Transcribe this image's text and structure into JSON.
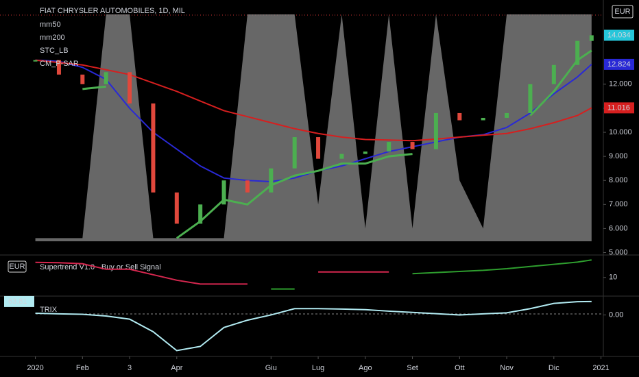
{
  "chart_data": [
    {
      "type": "line",
      "title": "FIAT CHRYSLER AUTOMOBILES, 1D, MIL",
      "currency": "EUR",
      "x": [
        0,
        0.5,
        1,
        1.5,
        2,
        2.5,
        3,
        3.5,
        4,
        4.5,
        5,
        5.5,
        6,
        6.5,
        7,
        7.5,
        8,
        8.5,
        9,
        9.5,
        10,
        10.5,
        11,
        11.5,
        11.8
      ],
      "xlim": [
        -0.75,
        12.05
      ],
      "xticks": [
        {
          "value": 0,
          "label": "2020"
        },
        {
          "value": 1,
          "label": "Feb"
        },
        {
          "value": 2,
          "label": "3"
        },
        {
          "value": 3,
          "label": "Apr"
        },
        {
          "value": 5,
          "label": "Giu"
        },
        {
          "value": 6,
          "label": "Lug"
        },
        {
          "value": 7,
          "label": "Ago"
        },
        {
          "value": 8,
          "label": "Set"
        },
        {
          "value": 9,
          "label": "Ott"
        },
        {
          "value": 10,
          "label": "Nov"
        },
        {
          "value": 11,
          "label": "Dic"
        },
        {
          "value": 12,
          "label": "2021"
        }
      ],
      "ylim": [
        4.9,
        15.5
      ],
      "yticks": [
        {
          "value": 12,
          "label": "12.000"
        },
        {
          "value": 11,
          "label": "11.000"
        },
        {
          "value": 10,
          "label": "10.000"
        },
        {
          "value": 9,
          "label": "9.000"
        },
        {
          "value": 8,
          "label": "8.000"
        },
        {
          "value": 7,
          "label": "7.000"
        },
        {
          "value": 6,
          "label": "6.000"
        },
        {
          "value": 5,
          "label": "5.000"
        }
      ],
      "series": [
        {
          "name": "STC_LB",
          "style": "area",
          "color": "#8a8a8a",
          "values": [
            5.6,
            5.6,
            5.6,
            14.9,
            14.9,
            5.6,
            5.6,
            5.6,
            5.6,
            14.9,
            14.9,
            14.9,
            7,
            14.9,
            6,
            14.9,
            6,
            14.9,
            8,
            6,
            14.9,
            14.9,
            14.9,
            14.9,
            14.9
          ]
        },
        {
          "name": "mm50",
          "style": "line",
          "color": "#2929d6",
          "values": [
            13.0,
            12.95,
            12.7,
            12.2,
            11.0,
            10.0,
            9.3,
            8.6,
            8.1,
            8.0,
            7.95,
            8.1,
            8.4,
            8.6,
            8.9,
            9.2,
            9.4,
            9.6,
            9.8,
            9.9,
            10.2,
            10.8,
            11.6,
            12.3,
            12.824
          ]
        },
        {
          "name": "mm200",
          "style": "line",
          "color": "#d61f1f",
          "values": [
            13.0,
            12.9,
            12.8,
            12.6,
            12.4,
            12.05,
            11.7,
            11.3,
            10.9,
            10.65,
            10.4,
            10.15,
            9.95,
            9.8,
            9.7,
            9.68,
            9.65,
            9.72,
            9.8,
            9.88,
            9.95,
            10.15,
            10.4,
            10.7,
            11.016
          ]
        },
        {
          "name": "CM_P-SAR",
          "style": "line",
          "color": "#4caf50",
          "width": 3,
          "values": [
            null,
            null,
            11.8,
            11.9,
            null,
            null,
            5.6,
            6.3,
            7.2,
            7.0,
            7.8,
            8.2,
            8.4,
            8.7,
            8.7,
            9.0,
            9.1,
            null,
            null,
            9.7,
            null,
            10.7,
            11.7,
            13.0,
            13.4
          ]
        },
        {
          "style": "candle",
          "up_color": "#4caf50",
          "down_color": "#e0483c",
          "values": [
            13.0,
            12.4,
            12.0,
            12.5,
            11.2,
            7.5,
            6.2,
            7.0,
            8.0,
            7.5,
            8.5,
            9.8,
            8.9,
            9.1,
            9.2,
            9.6,
            9.3,
            10.8,
            10.5,
            10.6,
            10.8,
            12.0,
            12.8,
            13.8,
            14.034
          ]
        }
      ]
    },
    {
      "type": "line",
      "title": "Supertrend V1.0 - Buy or Sell Signal",
      "currency": "EUR",
      "ylim": [
        6.6,
        14.1
      ],
      "yticks": [
        10
      ],
      "series": [
        {
          "color": "#d6274f",
          "values": [
            12.75,
            12.7,
            12.5,
            11.5,
            11.5,
            10.5,
            9.5,
            8.8,
            8.8,
            8.8,
            null,
            null,
            11.0,
            11.0,
            11.0,
            11.0,
            null,
            null,
            null,
            null,
            null,
            null,
            null,
            null,
            null
          ]
        },
        {
          "color": "#2e9e2e",
          "values": [
            null,
            null,
            null,
            null,
            null,
            null,
            null,
            null,
            null,
            null,
            7.9,
            7.9,
            null,
            null,
            null,
            null,
            10.7,
            10.9,
            11.1,
            11.3,
            11.6,
            12.0,
            12.4,
            12.8,
            13.2
          ]
        }
      ]
    },
    {
      "type": "line",
      "title": "TRIX",
      "ylim": [
        -197.8,
        76.6
      ],
      "yticks": [
        {
          "value": 0,
          "label": "0.00"
        }
      ],
      "series": [
        {
          "color": "#b2ebf2",
          "values": [
            8,
            5,
            3,
            -5,
            -20,
            -80,
            -170,
            -150,
            -60,
            -25,
            0,
            30,
            30,
            28,
            25,
            18,
            12,
            6,
            0,
            5,
            10,
            30,
            55,
            63,
            63.81
          ]
        }
      ]
    }
  ]
}
